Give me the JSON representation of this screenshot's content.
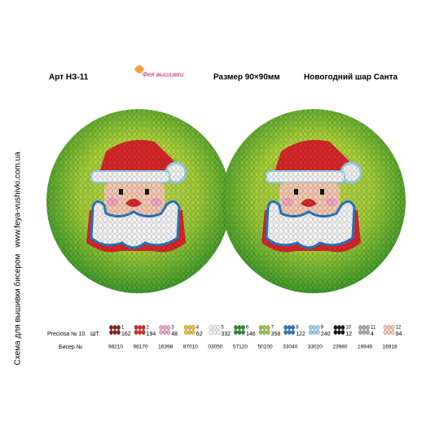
{
  "header": {
    "article": "Арт НЗ-11",
    "logo": "Фея вышивки",
    "size": "Размер 90×90мм",
    "name": "Новогодний шар Санта"
  },
  "side": {
    "website": "www.feya-vushivki.com.ua",
    "caption": "Схема для вышивки бисером"
  },
  "legend": {
    "brand": "Preciosa № 10",
    "count_label": "ШТ.",
    "bead_label": "Бисер №",
    "items": [
      {
        "index": "1",
        "count": "162",
        "bead": "98210",
        "color": "#8b1c1c"
      },
      {
        "index": "2",
        "count": "194",
        "bead": "98170",
        "color": "#d8282a"
      },
      {
        "index": "3",
        "count": "48",
        "bead": "16398",
        "color": "#f2a6c6"
      },
      {
        "index": "4",
        "count": "62",
        "bead": "87010",
        "color": "#e9c23e"
      },
      {
        "index": "5",
        "count": "332",
        "bead": "03050",
        "color": "#f4f4f4"
      },
      {
        "index": "6",
        "count": "146",
        "bead": "57120",
        "color": "#2b8a3c"
      },
      {
        "index": "7",
        "count": "358",
        "bead": "50100",
        "color": "#9ec83a"
      },
      {
        "index": "8",
        "count": "122",
        "bead": "33040",
        "color": "#2a78c0"
      },
      {
        "index": "9",
        "count": "240",
        "bead": "33020",
        "color": "#9ad2f2"
      },
      {
        "index": "10",
        "count": "12",
        "bead": "23980",
        "color": "#151515"
      },
      {
        "index": "11",
        "count": "4",
        "bead": "16949",
        "color": "#a9a9a9"
      },
      {
        "index": "12",
        "count": "94",
        "bead": "16918",
        "color": "#f6c9b2"
      }
    ]
  }
}
